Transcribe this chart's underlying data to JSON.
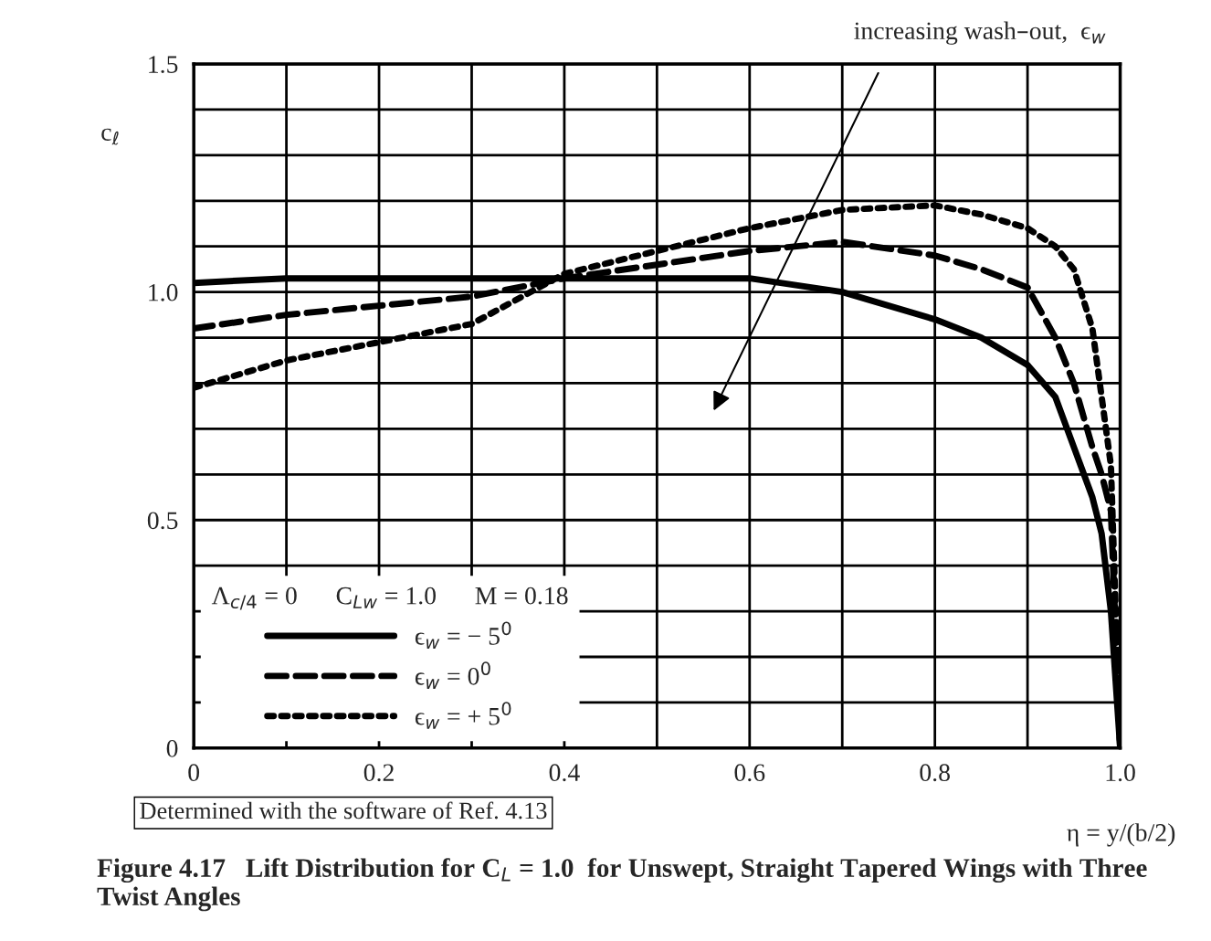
{
  "chart_data": {
    "type": "line",
    "title": "Figure 4.17   Lift Distribution for C$_{L}$ = 1.0  for Unswept, Straight Tapered Wings with Three Twist Angles",
    "xlabel": "η = y/(b/2)",
    "ylabel": "c$_{ℓ}$",
    "legend_title": "Λ$_{c/4}$ = 0      C$_{Lw}$ = 1.0      M = 0.18",
    "x": [
      0,
      0.1,
      0.2,
      0.3,
      0.4,
      0.5,
      0.6,
      0.7,
      0.8,
      0.85,
      0.9,
      0.93,
      0.95,
      0.97,
      0.98,
      0.99,
      1.0
    ],
    "series": [
      {
        "name": "ϵ$_{w}$ = − 5$^{0}$",
        "color": "#000000",
        "line_style": "solid",
        "values": [
          1.02,
          1.03,
          1.03,
          1.03,
          1.03,
          1.03,
          1.03,
          1.0,
          0.94,
          0.9,
          0.84,
          0.77,
          0.66,
          0.55,
          0.47,
          0.3,
          0
        ]
      },
      {
        "name": "ϵ$_{w}$ = 0$^{0}$",
        "color": "#000000",
        "line_style": "dashed",
        "values": [
          0.92,
          0.95,
          0.97,
          0.99,
          1.03,
          1.06,
          1.09,
          1.11,
          1.08,
          1.05,
          1.01,
          0.9,
          0.8,
          0.66,
          0.6,
          0.52,
          0
        ]
      },
      {
        "name": "ϵ$_{w}$ = + 5$^{0}$",
        "color": "#000000",
        "line_style": "dotted",
        "values": [
          0.79,
          0.85,
          0.89,
          0.93,
          1.04,
          1.09,
          1.14,
          1.18,
          1.19,
          1.17,
          1.14,
          1.1,
          1.05,
          0.92,
          0.77,
          0.62,
          0
        ]
      }
    ],
    "annotations": [
      "increasing wash–out,  ϵ$_{w}$",
      "Determined with the software of Ref. 4.13"
    ],
    "xlim": [
      0,
      1.0
    ],
    "ylim": [
      0,
      1.5
    ],
    "xticks": [
      0,
      {
        "value": 0.1,
        "label": null
      },
      0.2,
      {
        "value": 0.3,
        "label": null
      },
      0.4,
      {
        "value": 0.5,
        "label": null
      },
      0.6,
      {
        "value": 0.7,
        "label": null
      },
      0.8,
      {
        "value": 0.9,
        "label": null
      },
      {
        "value": 1.0,
        "label": "1.0"
      }
    ],
    "yticks": [
      0,
      {
        "value": 0.1,
        "label": null
      },
      {
        "value": 0.2,
        "label": null
      },
      {
        "value": 0.3,
        "label": null
      },
      {
        "value": 0.4,
        "label": null
      },
      0.5,
      {
        "value": 0.6,
        "label": null
      },
      {
        "value": 0.7,
        "label": null
      },
      {
        "value": 0.8,
        "label": null
      },
      {
        "value": 0.9,
        "label": null
      },
      {
        "value": 1.0,
        "label": "1.0"
      },
      {
        "value": 1.1,
        "label": null
      },
      {
        "value": 1.2,
        "label": null
      },
      {
        "value": 1.3,
        "label": null
      },
      {
        "value": 1.4,
        "label": null
      },
      1.5
    ],
    "grid": true,
    "legend": "bottom left",
    "marker": "none"
  }
}
